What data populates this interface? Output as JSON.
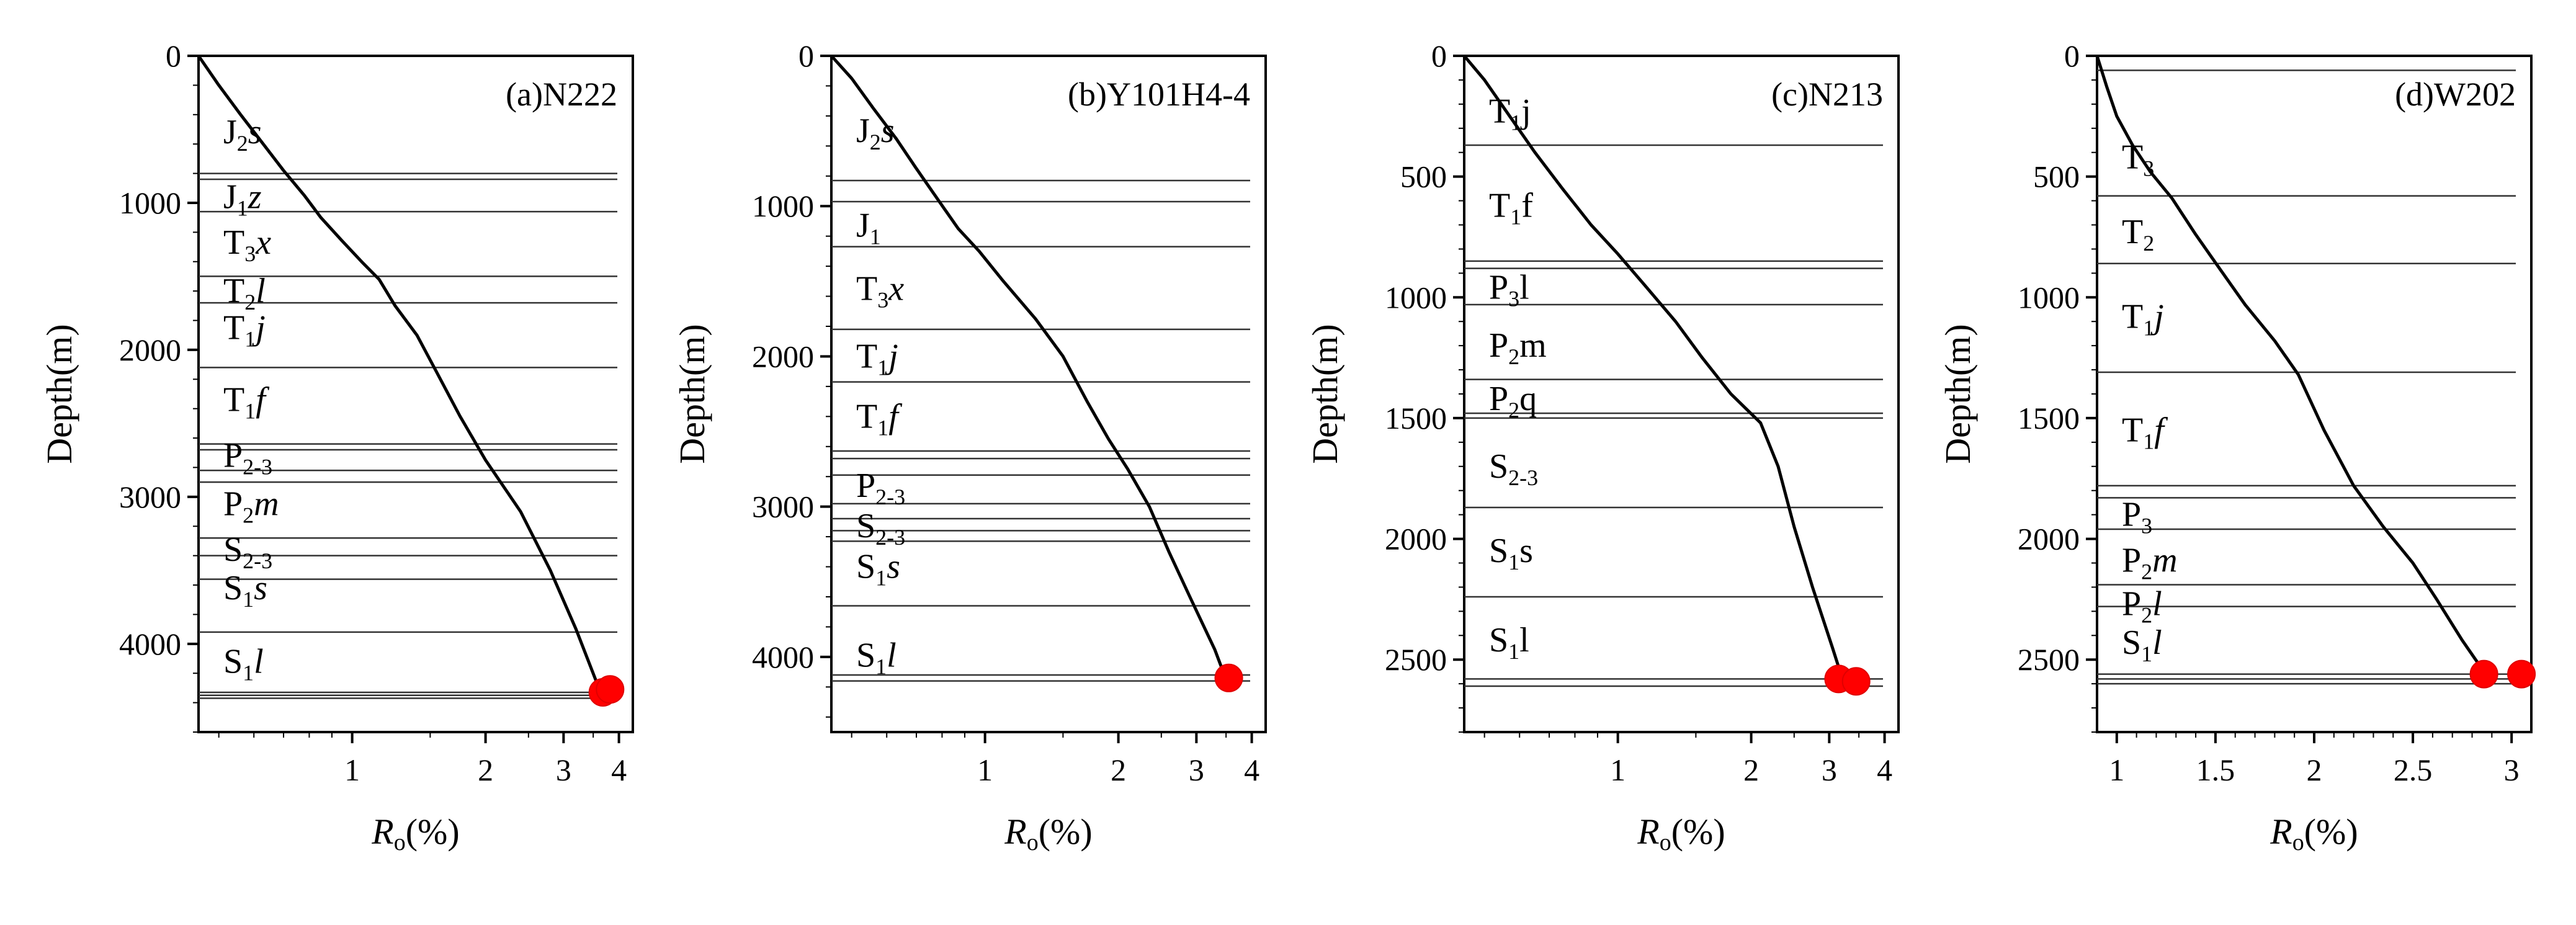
{
  "chart_data": [
    {
      "type": "line",
      "title": "(a)N222",
      "xlabel": {
        "main": "R",
        "sub": "o",
        "rest": "(%)"
      },
      "ylabel": "Depth(m)",
      "xscale": "log",
      "xlim": [
        0.45,
        4.3
      ],
      "ylim": [
        0,
        4600
      ],
      "xticks": [
        1,
        2,
        3,
        4
      ],
      "yticks": [
        0,
        1000,
        2000,
        3000,
        4000
      ],
      "formation_lines": [
        800,
        840,
        1060,
        1500,
        1680,
        2120,
        2640,
        2680,
        2820,
        2900,
        3280,
        3400,
        3560,
        3920,
        4330,
        4350,
        4370
      ],
      "formations": [
        {
          "y": 520,
          "parts": [
            [
              "J",
              "n"
            ],
            [
              "2",
              "sub"
            ],
            [
              "s",
              "i"
            ]
          ]
        },
        {
          "y": 960,
          "parts": [
            [
              "J",
              "n"
            ],
            [
              "1",
              "sub"
            ],
            [
              "z",
              "i"
            ]
          ]
        },
        {
          "y": 1270,
          "parts": [
            [
              "T",
              "n"
            ],
            [
              "3",
              "sub"
            ],
            [
              "x",
              "i"
            ]
          ]
        },
        {
          "y": 1600,
          "parts": [
            [
              "T",
              "n"
            ],
            [
              "2",
              "sub"
            ],
            [
              "l",
              "i"
            ]
          ]
        },
        {
          "y": 1850,
          "parts": [
            [
              "T",
              "n"
            ],
            [
              "1",
              "sub"
            ],
            [
              "j",
              "i"
            ]
          ]
        },
        {
          "y": 2340,
          "parts": [
            [
              "T",
              "n"
            ],
            [
              "1",
              "sub"
            ],
            [
              "f",
              "i"
            ]
          ]
        },
        {
          "y": 2720,
          "parts": [
            [
              "P",
              "n"
            ],
            [
              "2-3",
              "sub"
            ]
          ]
        },
        {
          "y": 3050,
          "parts": [
            [
              "P",
              "n"
            ],
            [
              "2",
              "sub"
            ],
            [
              "m",
              "i"
            ]
          ]
        },
        {
          "y": 3360,
          "parts": [
            [
              "S",
              "n"
            ],
            [
              "2-3",
              "sub"
            ]
          ]
        },
        {
          "y": 3620,
          "parts": [
            [
              "S",
              "n"
            ],
            [
              "1",
              "sub"
            ],
            [
              "s",
              "i"
            ]
          ]
        },
        {
          "y": 4120,
          "parts": [
            [
              "S",
              "n"
            ],
            [
              "1",
              "sub"
            ],
            [
              "l",
              "i"
            ]
          ]
        }
      ],
      "series": [
        {
          "x": [
            0.45,
            0.5,
            0.56,
            0.63,
            0.7,
            0.78,
            0.85,
            0.95,
            1.05,
            1.15,
            1.25,
            1.4,
            1.55,
            1.75,
            2.0,
            2.4,
            2.8,
            3.2,
            3.55
          ],
          "y": [
            0,
            200,
            400,
            600,
            780,
            950,
            1100,
            1260,
            1400,
            1520,
            1700,
            1900,
            2150,
            2450,
            2750,
            3100,
            3500,
            3900,
            4250
          ]
        }
      ],
      "markers": [
        {
          "x": 3.68,
          "y": 4330
        },
        {
          "x": 3.82,
          "y": 4310
        }
      ]
    },
    {
      "type": "line",
      "title": "(b)Y101H4-4",
      "xlabel": {
        "main": "R",
        "sub": "o",
        "rest": "(%)"
      },
      "ylabel": "Depth(m)",
      "xscale": "log",
      "xlim": [
        0.45,
        4.3
      ],
      "ylim": [
        0,
        4500
      ],
      "xticks": [
        1,
        2,
        3,
        4
      ],
      "yticks": [
        0,
        1000,
        2000,
        3000,
        4000
      ],
      "formation_lines": [
        830,
        970,
        1270,
        1820,
        2170,
        2630,
        2680,
        2790,
        2980,
        3080,
        3160,
        3230,
        3660,
        4120,
        4160
      ],
      "formations": [
        {
          "y": 500,
          "parts": [
            [
              "J",
              "n"
            ],
            [
              "2",
              "sub"
            ],
            [
              "s",
              "i"
            ]
          ]
        },
        {
          "y": 1130,
          "parts": [
            [
              "J",
              "n"
            ],
            [
              "1",
              "sub"
            ]
          ]
        },
        {
          "y": 1550,
          "parts": [
            [
              "T",
              "n"
            ],
            [
              "3",
              "sub"
            ],
            [
              "x",
              "i"
            ]
          ]
        },
        {
          "y": 2000,
          "parts": [
            [
              "T",
              "n"
            ],
            [
              "1",
              "sub"
            ],
            [
              "j",
              "i"
            ]
          ]
        },
        {
          "y": 2400,
          "parts": [
            [
              "T",
              "n"
            ],
            [
              "1",
              "sub"
            ],
            [
              "f",
              "i"
            ]
          ]
        },
        {
          "y": 2860,
          "parts": [
            [
              "P",
              "n"
            ],
            [
              "2-3",
              "sub"
            ]
          ]
        },
        {
          "y": 3130,
          "parts": [
            [
              "S",
              "n"
            ],
            [
              "2-3",
              "sub"
            ]
          ]
        },
        {
          "y": 3400,
          "parts": [
            [
              "S",
              "n"
            ],
            [
              "1",
              "sub"
            ],
            [
              "s",
              "i"
            ]
          ]
        },
        {
          "y": 3990,
          "parts": [
            [
              "S",
              "n"
            ],
            [
              "1",
              "sub"
            ],
            [
              "l",
              "i"
            ]
          ]
        }
      ],
      "series": [
        {
          "x": [
            0.45,
            0.5,
            0.56,
            0.63,
            0.7,
            0.78,
            0.87,
            0.97,
            1.1,
            1.3,
            1.5,
            1.7,
            1.9,
            2.1,
            2.35,
            2.6,
            2.9,
            3.3,
            3.5
          ],
          "y": [
            0,
            150,
            350,
            550,
            750,
            950,
            1150,
            1300,
            1500,
            1750,
            2000,
            2300,
            2550,
            2750,
            3000,
            3300,
            3600,
            3950,
            4150
          ]
        }
      ],
      "markers": [
        {
          "x": 3.55,
          "y": 4140
        }
      ]
    },
    {
      "type": "line",
      "title": "(c)N213",
      "xlabel": {
        "main": "R",
        "sub": "o",
        "rest": "(%)"
      },
      "ylabel": "Depth(m)",
      "xscale": "log",
      "xlim": [
        0.45,
        4.3
      ],
      "ylim": [
        0,
        2800
      ],
      "xticks": [
        1,
        2,
        3,
        4
      ],
      "yticks": [
        0,
        500,
        1000,
        1500,
        2000,
        2500
      ],
      "formation_lines": [
        370,
        850,
        880,
        1030,
        1340,
        1480,
        1500,
        1870,
        2240,
        2580,
        2610
      ],
      "formations": [
        {
          "y": 230,
          "parts": [
            [
              "T",
              "n"
            ],
            [
              "1",
              "sub"
            ],
            [
              "j",
              "n"
            ]
          ]
        },
        {
          "y": 620,
          "parts": [
            [
              "T",
              "n"
            ],
            [
              "1",
              "sub"
            ],
            [
              "f",
              "n"
            ]
          ]
        },
        {
          "y": 960,
          "parts": [
            [
              "P",
              "n"
            ],
            [
              "3",
              "sub"
            ],
            [
              "l",
              "n"
            ]
          ]
        },
        {
          "y": 1200,
          "parts": [
            [
              "P",
              "n"
            ],
            [
              "2",
              "sub"
            ],
            [
              "m",
              "n"
            ]
          ]
        },
        {
          "y": 1420,
          "parts": [
            [
              "P",
              "n"
            ],
            [
              "2",
              "sub"
            ],
            [
              "q",
              "n"
            ]
          ]
        },
        {
          "y": 1700,
          "parts": [
            [
              "S",
              "n"
            ],
            [
              "2-3",
              "sub"
            ]
          ]
        },
        {
          "y": 2050,
          "parts": [
            [
              "S",
              "n"
            ],
            [
              "1",
              "sub"
            ],
            [
              "s",
              "n"
            ]
          ]
        },
        {
          "y": 2420,
          "parts": [
            [
              "S",
              "n"
            ],
            [
              "1",
              "sub"
            ],
            [
              "l",
              "n"
            ]
          ]
        }
      ],
      "series": [
        {
          "x": [
            0.45,
            0.5,
            0.57,
            0.65,
            0.75,
            0.87,
            1.0,
            1.15,
            1.35,
            1.55,
            1.8,
            2.1,
            2.3,
            2.5,
            2.75,
            3.05,
            3.2
          ],
          "y": [
            0,
            100,
            250,
            400,
            550,
            700,
            820,
            950,
            1100,
            1250,
            1400,
            1520,
            1700,
            1950,
            2200,
            2450,
            2570
          ]
        }
      ],
      "markers": [
        {
          "x": 3.15,
          "y": 2580
        },
        {
          "x": 3.45,
          "y": 2590
        }
      ]
    },
    {
      "type": "line",
      "title": "(d)W202",
      "xlabel": {
        "main": "R",
        "sub": "o",
        "rest": "(%)"
      },
      "ylabel": "Depth(m)",
      "xscale": "linear",
      "xlim": [
        0.9,
        3.1
      ],
      "ylim": [
        0,
        2800
      ],
      "xticks": [
        1,
        1.5,
        2,
        2.5,
        3
      ],
      "yticks": [
        0,
        500,
        1000,
        1500,
        2000,
        2500
      ],
      "formation_lines": [
        60,
        580,
        860,
        1310,
        1780,
        1830,
        1960,
        2190,
        2280,
        2560,
        2580,
        2600
      ],
      "formations": [
        {
          "y": 420,
          "parts": [
            [
              "T",
              "n"
            ],
            [
              "3",
              "sub"
            ]
          ]
        },
        {
          "y": 730,
          "parts": [
            [
              "T",
              "n"
            ],
            [
              "2",
              "sub"
            ]
          ]
        },
        {
          "y": 1080,
          "parts": [
            [
              "T",
              "n"
            ],
            [
              "1",
              "sub"
            ],
            [
              "j",
              "i"
            ]
          ]
        },
        {
          "y": 1550,
          "parts": [
            [
              "T",
              "n"
            ],
            [
              "1",
              "sub"
            ],
            [
              "f",
              "i"
            ]
          ]
        },
        {
          "y": 1900,
          "parts": [
            [
              "P",
              "n"
            ],
            [
              "3",
              "sub"
            ]
          ]
        },
        {
          "y": 2090,
          "parts": [
            [
              "P",
              "n"
            ],
            [
              "2",
              "sub"
            ],
            [
              "m",
              "i"
            ]
          ]
        },
        {
          "y": 2270,
          "parts": [
            [
              "P",
              "n"
            ],
            [
              "2",
              "sub"
            ],
            [
              "l",
              "i"
            ]
          ]
        },
        {
          "y": 2430,
          "parts": [
            [
              "S",
              "n"
            ],
            [
              "1",
              "sub"
            ],
            [
              "l",
              "i"
            ]
          ]
        }
      ],
      "series": [
        {
          "x": [
            0.9,
            0.95,
            1.0,
            1.08,
            1.17,
            1.28,
            1.4,
            1.52,
            1.65,
            1.8,
            1.92,
            2.05,
            2.2,
            2.35,
            2.5,
            2.62,
            2.75,
            2.86
          ],
          "y": [
            0,
            130,
            250,
            370,
            480,
            590,
            740,
            880,
            1030,
            1180,
            1320,
            1550,
            1780,
            1950,
            2100,
            2250,
            2420,
            2550
          ]
        }
      ],
      "markers": [
        {
          "x": 2.86,
          "y": 2560
        },
        {
          "x": 3.05,
          "y": 2560
        }
      ]
    }
  ]
}
